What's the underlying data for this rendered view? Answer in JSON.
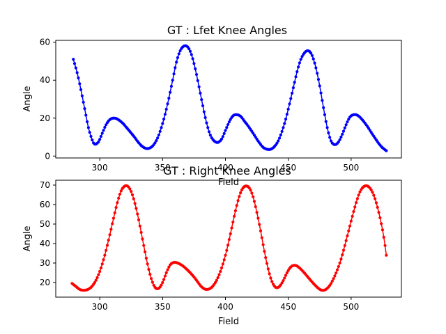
{
  "chart_data": [
    {
      "type": "line",
      "title": "GT : Lfet Knee Angles",
      "xlabel": "Field",
      "ylabel": "Angle",
      "xlim": [
        265,
        540
      ],
      "ylim": [
        -1,
        61
      ],
      "xticks": [
        300,
        350,
        400,
        450,
        500
      ],
      "yticks": [
        0,
        20,
        40,
        60
      ],
      "grid": false,
      "legend": "none",
      "series": [
        {
          "color": "#0000ff",
          "marker": "dot",
          "x_start": 279,
          "x_end": 528,
          "points": [
            [
              279,
              51
            ],
            [
              282,
              44
            ],
            [
              285,
              35
            ],
            [
              288,
              25
            ],
            [
              291,
              15
            ],
            [
              294,
              8.5
            ],
            [
              296,
              6.3
            ],
            [
              299,
              7.5
            ],
            [
              302,
              12
            ],
            [
              305,
              16.5
            ],
            [
              308,
              19.2
            ],
            [
              311,
              20
            ],
            [
              314,
              19.5
            ],
            [
              318,
              17.5
            ],
            [
              322,
              14.5
            ],
            [
              327,
              10.5
            ],
            [
              331,
              7
            ],
            [
              334,
              5
            ],
            [
              337,
              4
            ],
            [
              340,
              4.3
            ],
            [
              343,
              6
            ],
            [
              346,
              9.5
            ],
            [
              349,
              15
            ],
            [
              352,
              22
            ],
            [
              355,
              30.5
            ],
            [
              358,
              40
            ],
            [
              361,
              49.5
            ],
            [
              364,
              55.5
            ],
            [
              367,
              58
            ],
            [
              370,
              57.5
            ],
            [
              373,
              53.5
            ],
            [
              376,
              46
            ],
            [
              379,
              36.5
            ],
            [
              382,
              26.5
            ],
            [
              385,
              17.5
            ],
            [
              388,
              11
            ],
            [
              391,
              8
            ],
            [
              394,
              7.2
            ],
            [
              397,
              9
            ],
            [
              400,
              13.5
            ],
            [
              403,
              18
            ],
            [
              406,
              21.2
            ],
            [
              409,
              21.8
            ],
            [
              412,
              21
            ],
            [
              415,
              18.5
            ],
            [
              419,
              15
            ],
            [
              423,
              11
            ],
            [
              427,
              7
            ],
            [
              430,
              4.6
            ],
            [
              433,
              3.6
            ],
            [
              436,
              3.6
            ],
            [
              439,
              5
            ],
            [
              442,
              8
            ],
            [
              445,
              13
            ],
            [
              448,
              19.5
            ],
            [
              451,
              27.5
            ],
            [
              454,
              36
            ],
            [
              457,
              44.5
            ],
            [
              460,
              51
            ],
            [
              463,
              54.5
            ],
            [
              466,
              55.5
            ],
            [
              469,
              53
            ],
            [
              472,
              46.5
            ],
            [
              475,
              37
            ],
            [
              478,
              25.5
            ],
            [
              481,
              15
            ],
            [
              484,
              8
            ],
            [
              487,
              6
            ],
            [
              490,
              7.5
            ],
            [
              493,
              11.5
            ],
            [
              496,
              16.5
            ],
            [
              499,
              20.5
            ],
            [
              502,
              21.8
            ],
            [
              505,
              21.5
            ],
            [
              508,
              19.8
            ],
            [
              512,
              16.5
            ],
            [
              516,
              12.5
            ],
            [
              520,
              8.5
            ],
            [
              524,
              5
            ],
            [
              528,
              2.8
            ]
          ]
        }
      ]
    },
    {
      "type": "line",
      "title": "GT : Right Knee Angles",
      "xlabel": "Field",
      "ylabel": "Angle",
      "xlim": [
        265,
        540
      ],
      "ylim": [
        12.5,
        72.5
      ],
      "xticks": [
        300,
        350,
        400,
        450,
        500
      ],
      "yticks": [
        20,
        30,
        40,
        50,
        60,
        70
      ],
      "grid": false,
      "legend": "none",
      "series": [
        {
          "color": "#ff0000",
          "marker": "dot",
          "x_start": 278,
          "x_end": 528,
          "points": [
            [
              278,
              19.5
            ],
            [
              281,
              18
            ],
            [
              284,
              16.5
            ],
            [
              287,
              16
            ],
            [
              290,
              16.3
            ],
            [
              293,
              17.5
            ],
            [
              296,
              20
            ],
            [
              299,
              24
            ],
            [
              302,
              29.5
            ],
            [
              305,
              36.5
            ],
            [
              308,
              44.5
            ],
            [
              311,
              53
            ],
            [
              314,
              61
            ],
            [
              317,
              67
            ],
            [
              320,
              69.5
            ],
            [
              323,
              69
            ],
            [
              326,
              65
            ],
            [
              329,
              58
            ],
            [
              332,
              49
            ],
            [
              335,
              39
            ],
            [
              338,
              29.5
            ],
            [
              341,
              22
            ],
            [
              344,
              17.5
            ],
            [
              347,
              17
            ],
            [
              350,
              20
            ],
            [
              353,
              25
            ],
            [
              356,
              29
            ],
            [
              359,
              30.3
            ],
            [
              362,
              30
            ],
            [
              365,
              29
            ],
            [
              368,
              27.5
            ],
            [
              372,
              25
            ],
            [
              376,
              22
            ],
            [
              380,
              18.5
            ],
            [
              383,
              16.8
            ],
            [
              386,
              16.5
            ],
            [
              389,
              17.5
            ],
            [
              392,
              20
            ],
            [
              395,
              24
            ],
            [
              398,
              29.5
            ],
            [
              401,
              36.5
            ],
            [
              404,
              45
            ],
            [
              407,
              54
            ],
            [
              410,
              62
            ],
            [
              413,
              67.5
            ],
            [
              416,
              69.5
            ],
            [
              419,
              68.5
            ],
            [
              422,
              64
            ],
            [
              425,
              56
            ],
            [
              428,
              46.5
            ],
            [
              431,
              36
            ],
            [
              434,
              27
            ],
            [
              437,
              20.5
            ],
            [
              440,
              17.5
            ],
            [
              443,
              18
            ],
            [
              446,
              21
            ],
            [
              449,
              25
            ],
            [
              452,
              28
            ],
            [
              455,
              28.8
            ],
            [
              458,
              28
            ],
            [
              462,
              25.5
            ],
            [
              466,
              22.5
            ],
            [
              470,
              19.5
            ],
            [
              474,
              17
            ],
            [
              477,
              16
            ],
            [
              480,
              16.5
            ],
            [
              483,
              18.5
            ],
            [
              486,
              22
            ],
            [
              489,
              26.5
            ],
            [
              492,
              32
            ],
            [
              495,
              39
            ],
            [
              498,
              46.5
            ],
            [
              501,
              54
            ],
            [
              504,
              61
            ],
            [
              507,
              66.5
            ],
            [
              510,
              69.2
            ],
            [
              513,
              69.5
            ],
            [
              516,
              67.5
            ],
            [
              519,
              63
            ],
            [
              522,
              56
            ],
            [
              525,
              47
            ],
            [
              527,
              39
            ],
            [
              528,
              34
            ]
          ]
        }
      ]
    }
  ]
}
